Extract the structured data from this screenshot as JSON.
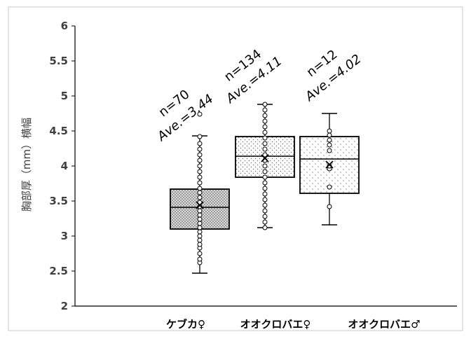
{
  "chart_data": {
    "type": "box",
    "title": "",
    "xlabel": "",
    "ylabel": "胸部厚（mm）横幅",
    "ylim": [
      2,
      6
    ],
    "yticks": [
      "2",
      "2.5",
      "3",
      "3.5",
      "4",
      "4.5",
      "5",
      "5.5",
      "6"
    ],
    "categories": [
      "ケブカ♀",
      "オオクロバエ♀",
      "オオクロバエ♂"
    ],
    "series": [
      {
        "category": "ケブカ♀",
        "n_label": "n=70",
        "ave_label": "Ave.=3.44",
        "whisker_low": 2.47,
        "q1": 3.1,
        "median": 3.41,
        "q3": 3.67,
        "whisker_high": 4.43,
        "mean": 3.44,
        "pattern": "crosshatch",
        "points": [
          2.62,
          2.67,
          2.75,
          2.83,
          2.88,
          2.94,
          3.0,
          3.06,
          3.12,
          3.18,
          3.24,
          3.3,
          3.36,
          3.42,
          3.48,
          3.55,
          3.62,
          3.68,
          3.76,
          3.84,
          3.92,
          4.0,
          4.08,
          4.16,
          4.24,
          4.32,
          4.42,
          4.74
        ]
      },
      {
        "category": "オオクロバエ♀",
        "n_label": "n=134",
        "ave_label": "Ave.=4.11",
        "whisker_low": 3.12,
        "q1": 3.84,
        "median": 4.14,
        "q3": 4.42,
        "whisker_high": 4.88,
        "mean": 4.11,
        "pattern": "dots",
        "points": [
          3.12,
          3.2,
          3.28,
          3.36,
          3.44,
          3.52,
          3.6,
          3.68,
          3.76,
          3.84,
          3.92,
          4.0,
          4.08,
          4.16,
          4.24,
          4.32,
          4.4,
          4.48,
          4.56,
          4.64,
          4.72,
          4.8,
          4.88
        ]
      },
      {
        "category": "オオクロバエ♂",
        "n_label": "n=12",
        "ave_label": "Ave.=4.02",
        "whisker_low": 3.16,
        "q1": 3.61,
        "median": 4.1,
        "q3": 4.42,
        "whisker_high": 4.75,
        "mean": 4.02,
        "pattern": "dots-sparse",
        "points": [
          3.42,
          3.7,
          3.96,
          4.0,
          4.22,
          4.3,
          4.37,
          4.44,
          4.5
        ]
      }
    ],
    "grid": false,
    "legend": "none"
  }
}
